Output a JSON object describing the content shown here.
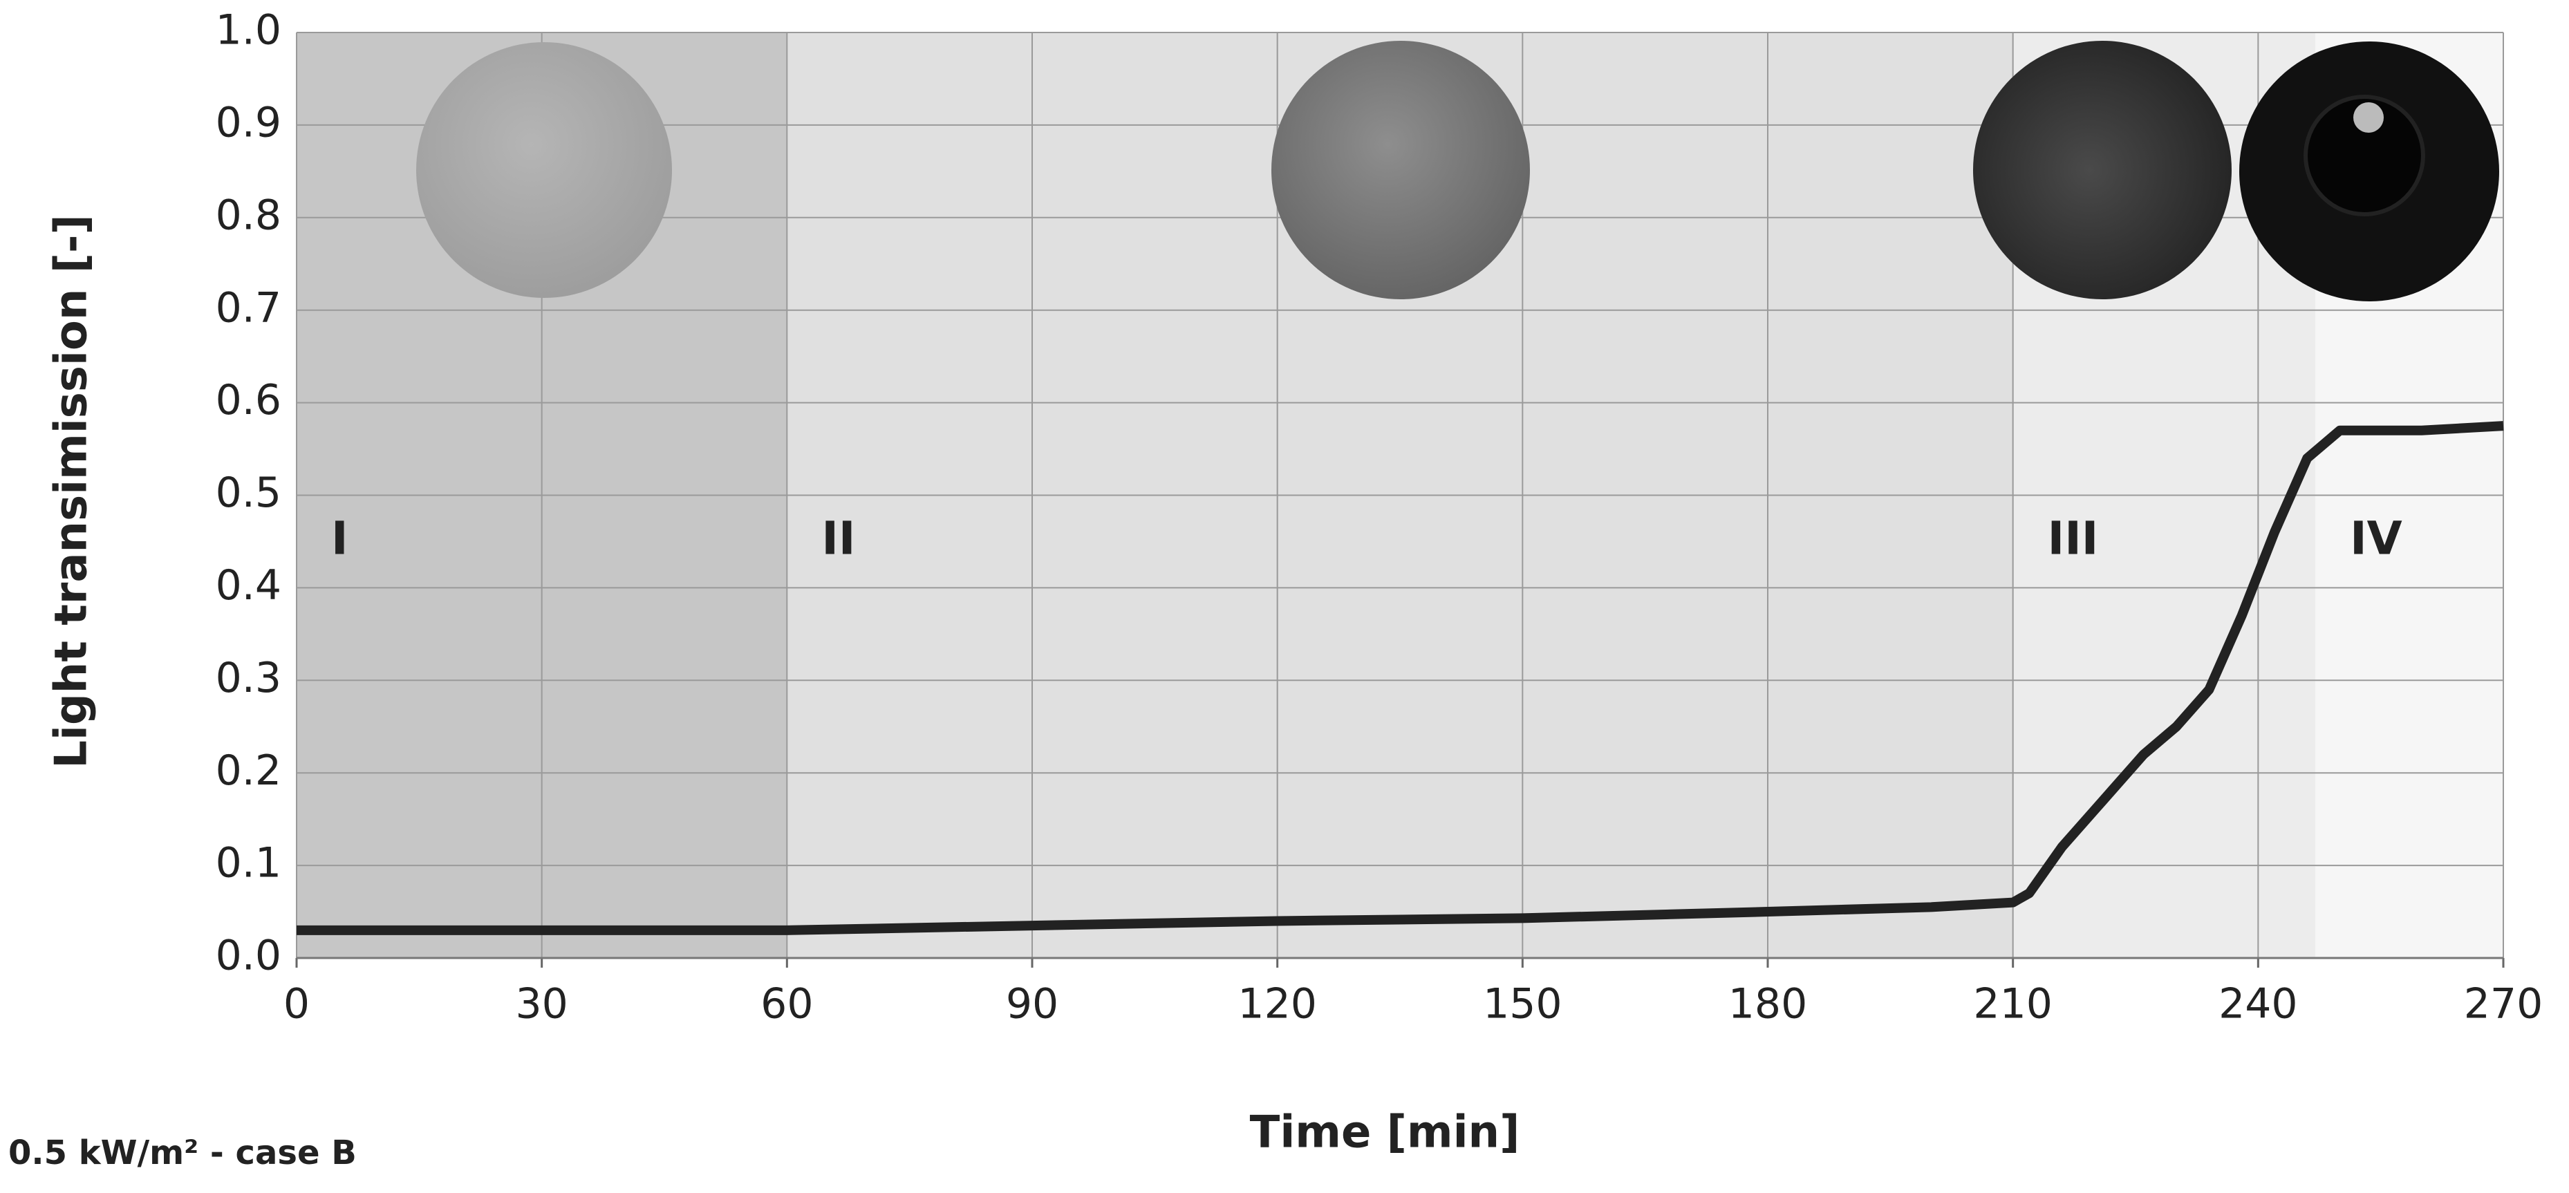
{
  "chart_data": {
    "type": "line",
    "x_label": "Time [min]",
    "y_label": "Light transimission [-]",
    "note": "0.5 kW/m² - case B",
    "xlim": [
      0,
      270
    ],
    "xticks": [
      0,
      30,
      60,
      90,
      120,
      150,
      180,
      210,
      240,
      270
    ],
    "ylim": [
      0,
      1
    ],
    "yticks": [
      {
        "value": 0,
        "label": "0.0"
      },
      0.1,
      0.2,
      0.3,
      0.4,
      0.5,
      0.6,
      0.7,
      0.8,
      0.9,
      {
        "value": 1,
        "label": "1.0"
      }
    ],
    "grid": true,
    "regions": [
      {
        "label": "I",
        "start": 0,
        "end": 60,
        "color": "#c6c6c6"
      },
      {
        "label": "II",
        "start": 60,
        "end": 210,
        "color": "#e0e0e0"
      },
      {
        "label": "III",
        "start": 210,
        "end": 247,
        "color": "#ececec"
      },
      {
        "label": "IV",
        "start": 247,
        "end": 270,
        "color": "#f6f6f6"
      }
    ],
    "series": [
      {
        "color": "#222222",
        "x": [
          0,
          60,
          90,
          120,
          150,
          180,
          200,
          210,
          212,
          216,
          220,
          226,
          230,
          234,
          238,
          242,
          246,
          250,
          260,
          270
        ],
        "values": [
          0.03,
          0.03,
          0.035,
          0.04,
          0.043,
          0.05,
          0.055,
          0.06,
          0.07,
          0.12,
          0.16,
          0.22,
          0.25,
          0.29,
          0.37,
          0.46,
          0.54,
          0.57,
          0.57,
          0.575
        ]
      }
    ]
  }
}
